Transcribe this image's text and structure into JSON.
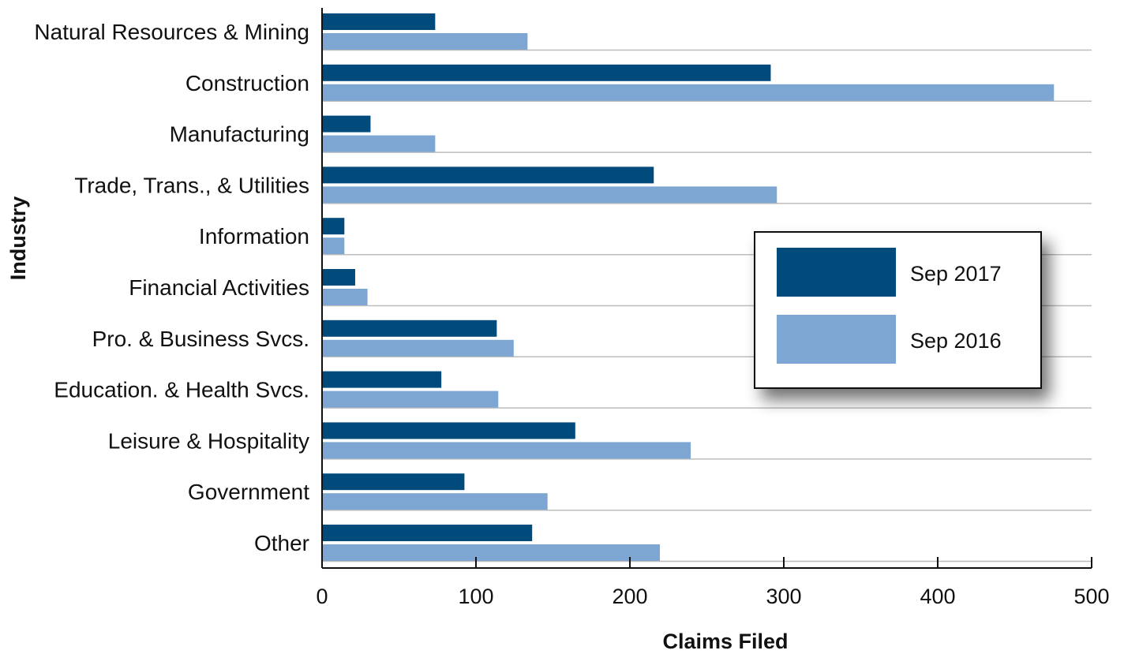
{
  "chart_data": {
    "type": "bar",
    "orientation": "horizontal",
    "title": "",
    "xlabel": "Claims Filed",
    "ylabel": "Industry",
    "xlim": [
      0,
      500
    ],
    "xticks": [
      0,
      100,
      200,
      300,
      400,
      500
    ],
    "grid": true,
    "legend_position": "right",
    "categories": [
      "Natural Resources & Mining",
      "Construction",
      "Manufacturing",
      "Trade, Trans., & Utilities",
      "Information",
      "Financial Activities",
      "Pro. & Business Svcs.",
      "Education. & Health Svcs.",
      "Leisure & Hospitality",
      "Government",
      "Other"
    ],
    "series": [
      {
        "name": "Sep 2017",
        "color": "#004b7c",
        "values": [
          73,
          291,
          31,
          215,
          14,
          21,
          113,
          77,
          164,
          92,
          136
        ]
      },
      {
        "name": "Sep 2016",
        "color": "#7da6d3",
        "values": [
          133,
          475,
          73,
          295,
          14,
          29,
          124,
          114,
          239,
          146,
          219
        ]
      }
    ]
  }
}
